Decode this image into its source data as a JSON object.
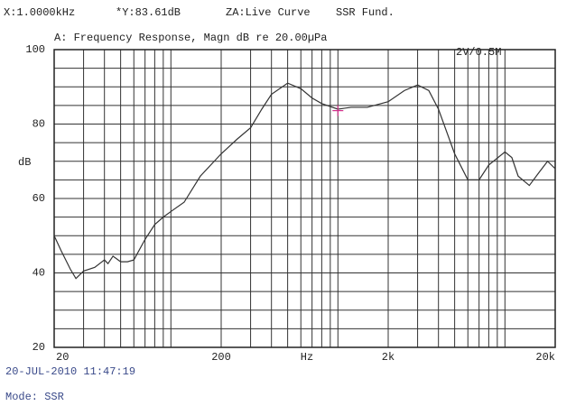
{
  "chart_data": {
    "type": "line",
    "header": [
      "X:1.0000kHz",
      "*Y:83.61dB",
      "ZA:Live Curve",
      "SSR Fund."
    ],
    "title": "A: Frequency Response, Magn dB re 20.00µPa",
    "annotation": "2V/0.5M",
    "y_label": "dB",
    "x_label": "Hz",
    "timestamp": "20-JUL-2010 11:47:19",
    "mode": "Mode: SSR",
    "log_x": true,
    "xlim": [
      20,
      20000
    ],
    "ylim": [
      20,
      100
    ],
    "xticks": [
      20,
      200,
      {
        "value": 2000,
        "label": "2k"
      },
      {
        "value": 20000,
        "label": "20k"
      }
    ],
    "yticks": [
      20,
      40,
      60,
      80,
      100
    ],
    "xgrid": [
      20,
      30,
      40,
      50,
      60,
      70,
      80,
      90,
      100,
      200,
      300,
      400,
      500,
      600,
      700,
      800,
      900,
      1000,
      2000,
      3000,
      4000,
      5000,
      6000,
      7000,
      8000,
      9000,
      10000,
      20000
    ],
    "ygrid": [
      20,
      25,
      30,
      35,
      40,
      45,
      50,
      55,
      60,
      65,
      70,
      75,
      80,
      85,
      90,
      95,
      100
    ],
    "color": "#333333",
    "cursor": [
      1000,
      83.61
    ],
    "cursor_color": "#d0308a",
    "x": [
      20,
      22,
      25,
      27,
      30,
      35,
      40,
      42,
      45,
      50,
      55,
      60,
      70,
      80,
      90,
      100,
      120,
      150,
      200,
      250,
      300,
      350,
      400,
      500,
      600,
      700,
      800,
      1000,
      1200,
      1500,
      2000,
      2500,
      3000,
      3500,
      4000,
      5000,
      6000,
      7000,
      8000,
      10000,
      11000,
      12000,
      14000,
      16000,
      18000,
      20000
    ],
    "values": [
      50,
      46,
      41,
      38.5,
      40.5,
      41.5,
      43.5,
      42.5,
      44.5,
      43,
      43,
      43.5,
      49,
      53,
      55,
      56.5,
      59,
      66,
      72,
      76,
      79,
      84,
      88,
      91,
      89.5,
      87,
      85.5,
      84,
      84.5,
      84.5,
      86,
      89,
      90.5,
      89,
      84,
      72,
      65,
      65,
      69,
      72.5,
      71,
      66,
      63.5,
      67,
      70,
      68
    ]
  }
}
